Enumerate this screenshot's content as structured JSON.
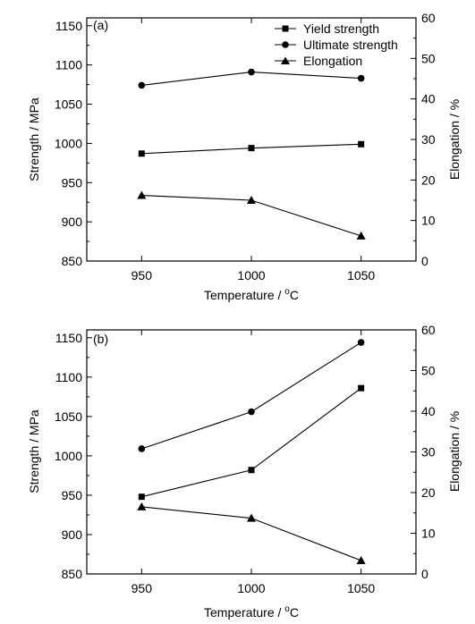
{
  "legend": [
    {
      "name": "Yield strength",
      "marker": "square"
    },
    {
      "name": "Ultimate strength",
      "marker": "circle"
    },
    {
      "name": "Elongation",
      "marker": "triangle"
    }
  ],
  "chart_data": [
    {
      "type": "line",
      "panel_label": "(a)",
      "xlabel": "Temperature / ",
      "xlabel_unit": "C",
      "xlabel_unit_sup": "o",
      "ylabel": "Strength / MPa",
      "y2label": "Elongation / %",
      "x": [
        950,
        1000,
        1050
      ],
      "x_ticks": [
        "950",
        "1000",
        "1050"
      ],
      "xlim": [
        925,
        1075
      ],
      "ylim": [
        850,
        1160
      ],
      "y_ticks": [
        850,
        900,
        950,
        1000,
        1050,
        1100,
        1150
      ],
      "y2lim": [
        0,
        60
      ],
      "y2_ticks": [
        0,
        10,
        20,
        30,
        40,
        50,
        60
      ],
      "legend_position": "top-right",
      "series": [
        {
          "name": "Yield strength",
          "marker": "square",
          "axis": "left",
          "values": [
            987,
            994,
            999
          ]
        },
        {
          "name": "Ultimate strength",
          "marker": "circle",
          "axis": "left",
          "values": [
            1074,
            1091,
            1083
          ]
        },
        {
          "name": "Elongation",
          "marker": "triangle",
          "axis": "right",
          "values": [
            16.2,
            15.0,
            6.2
          ]
        }
      ]
    },
    {
      "type": "line",
      "panel_label": "(b)",
      "xlabel": "Temperature / ",
      "xlabel_unit": "C",
      "xlabel_unit_sup": "o",
      "ylabel": "Strength / MPa",
      "y2label": "Elongation / %",
      "x": [
        950,
        1000,
        1050
      ],
      "x_ticks": [
        "950",
        "1000",
        "1050"
      ],
      "xlim": [
        925,
        1075
      ],
      "ylim": [
        850,
        1160
      ],
      "y_ticks": [
        850,
        900,
        950,
        1000,
        1050,
        1100,
        1150
      ],
      "y2lim": [
        0,
        60
      ],
      "y2_ticks": [
        0,
        10,
        20,
        30,
        40,
        50,
        60
      ],
      "series": [
        {
          "name": "Yield strength",
          "marker": "square",
          "axis": "left",
          "values": [
            948,
            982,
            1086
          ]
        },
        {
          "name": "Ultimate strength",
          "marker": "circle",
          "axis": "left",
          "values": [
            1009,
            1056,
            1144
          ]
        },
        {
          "name": "Elongation",
          "marker": "triangle",
          "axis": "right",
          "values": [
            16.5,
            13.7,
            3.3
          ]
        }
      ]
    }
  ]
}
